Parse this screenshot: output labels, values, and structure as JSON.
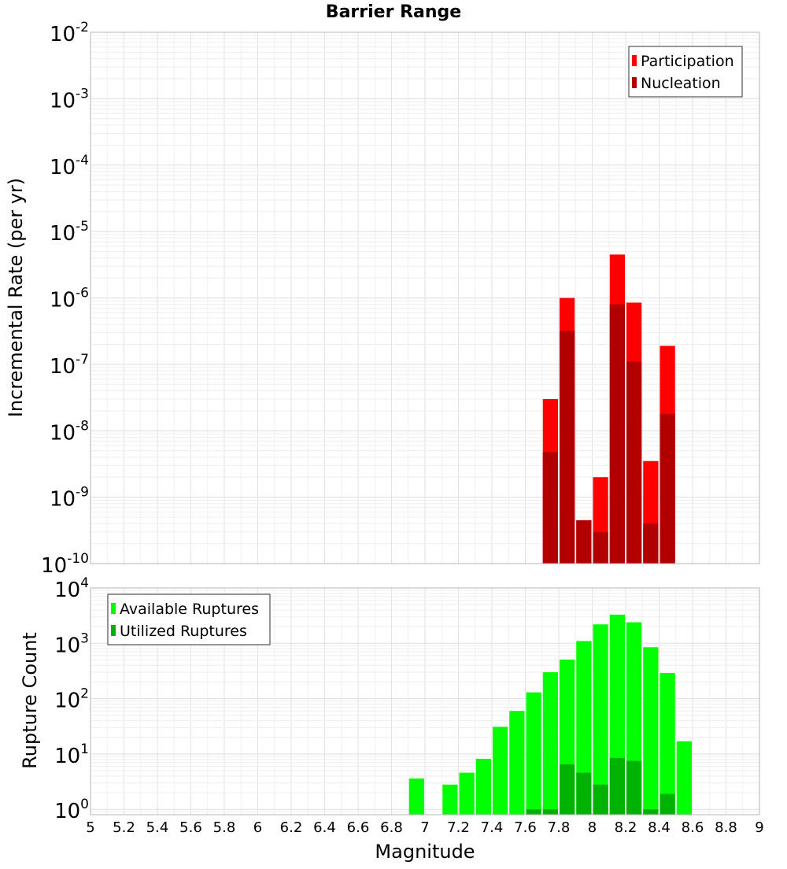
{
  "chart_data": [
    {
      "type": "bar",
      "title": "Barrier Range",
      "ylabel": "Incremental Rate (per yr)",
      "xlabel": "",
      "xlim": [
        5,
        9
      ],
      "ylim": [
        1e-10,
        0.01
      ],
      "yscale": "log",
      "grid": true,
      "legend_position": "top-right",
      "y_tick_exponents": [
        "-2",
        "-3",
        "-4",
        "-5",
        "-6",
        "-7",
        "-8",
        "-9",
        "-10"
      ],
      "y_tick_base": "10",
      "bin_width": 0.1,
      "series": [
        {
          "name": "Participation",
          "color": "#ff0000",
          "x": [
            7.75,
            7.85,
            7.95,
            8.05,
            8.15,
            8.25,
            8.35,
            8.45
          ],
          "values": [
            3e-08,
            1e-06,
            4.5e-10,
            2e-09,
            4.5e-06,
            8.5e-07,
            3.5e-09,
            1.9e-07
          ]
        },
        {
          "name": "Nucleation",
          "color": "#b20000",
          "x": [
            7.75,
            7.85,
            7.95,
            8.05,
            8.15,
            8.25,
            8.35,
            8.45
          ],
          "values": [
            4.8e-09,
            3.2e-07,
            4.5e-10,
            3e-10,
            8e-07,
            1.1e-07,
            4e-10,
            1.8e-08
          ]
        }
      ]
    },
    {
      "type": "bar",
      "title": "",
      "ylabel": "Rupture Count",
      "xlabel": "Magnitude",
      "xlim": [
        5,
        9
      ],
      "ylim": [
        0.8,
        10000
      ],
      "yscale": "log",
      "grid": true,
      "legend_position": "top-left",
      "y_tick_exponents": [
        "4",
        "3",
        "2",
        "1",
        "0"
      ],
      "y_tick_base": "10",
      "x_tick_labels": [
        "5",
        "5.2",
        "5.4",
        "5.6",
        "5.8",
        "6",
        "6.2",
        "6.4",
        "6.6",
        "6.8",
        "7",
        "7.2",
        "7.4",
        "7.6",
        "7.8",
        "8",
        "8.2",
        "8.4",
        "8.6",
        "8.8",
        "9"
      ],
      "bin_width": 0.1,
      "series": [
        {
          "name": "Available Ruptures",
          "color": "#00ff00",
          "x": [
            6.95,
            7.15,
            7.25,
            7.35,
            7.45,
            7.55,
            7.65,
            7.75,
            7.85,
            7.95,
            8.05,
            8.15,
            8.25,
            8.35,
            8.45,
            8.55
          ],
          "values": [
            3.6,
            2.8,
            4.6,
            8.2,
            31,
            60,
            130,
            300,
            510,
            1100,
            2200,
            3300,
            2400,
            850,
            290,
            17
          ]
        },
        {
          "name": "Utilized Ruptures",
          "color": "#00b200",
          "x": [
            7.65,
            7.75,
            7.85,
            7.95,
            8.05,
            8.15,
            8.25,
            8.35,
            8.45
          ],
          "values": [
            1,
            1,
            6.5,
            4.6,
            2.8,
            8.5,
            7.5,
            1,
            1.9
          ]
        }
      ]
    }
  ]
}
